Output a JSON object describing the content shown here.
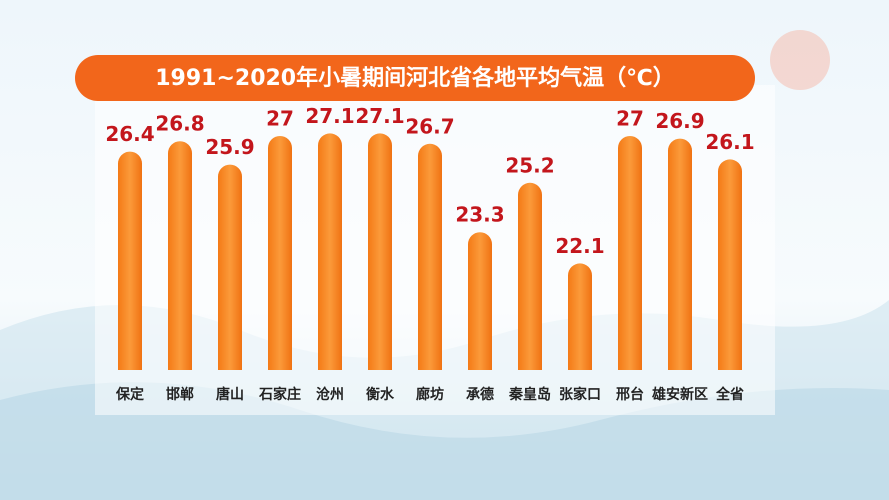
{
  "chart_data": {
    "type": "bar",
    "title": "1991~2020年小暑期间河北省各地平均气温（℃）",
    "categories": [
      "保定",
      "邯郸",
      "唐山",
      "石家庄",
      "沧州",
      "衡水",
      "廊坊",
      "承德",
      "秦皇岛",
      "张家口",
      "邢台",
      "雄安新区",
      "全省"
    ],
    "values": [
      26.4,
      26.8,
      25.9,
      27,
      27.1,
      27.1,
      26.7,
      23.3,
      25.2,
      22.1,
      27,
      26.9,
      26.1
    ],
    "color": "#f5841f",
    "label_color": "#c3161c",
    "ylim": [
      18,
      28
    ]
  }
}
